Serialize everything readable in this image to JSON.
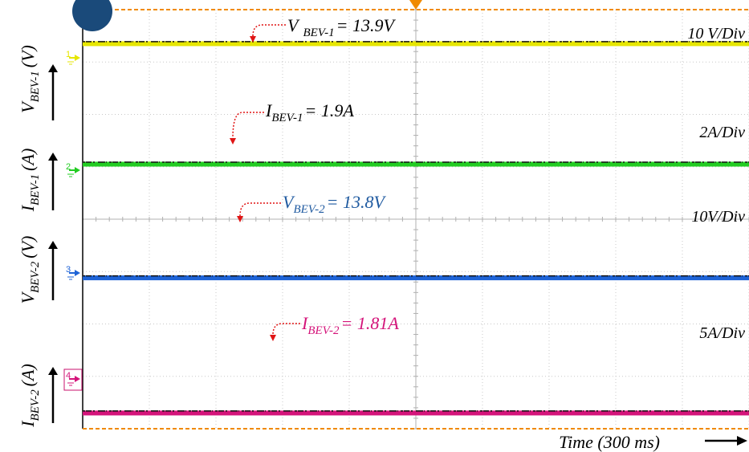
{
  "chart_data": {
    "type": "line",
    "time_label": "Time (300 ms)",
    "x_divisions": 10,
    "y_divisions": 8,
    "grid": true,
    "series": [
      {
        "name": "V_BEV-1",
        "channel": "1",
        "color": "#e6e600",
        "axis": {
          "main": "V",
          "sub": "BEV-1",
          "unit": "(V)"
        },
        "annotation": {
          "main": "V",
          "sub": "BEV-1",
          "value_text": "= 13.9V",
          "color": "#000000"
        },
        "scale": "10 V/Div",
        "value": 13.9,
        "unit": "V",
        "level_div": 7.35
      },
      {
        "name": "I_BEV-1",
        "channel": "2",
        "color": "#22cc22",
        "axis": {
          "main": "I",
          "sub": "BEV-1",
          "unit": "(A)"
        },
        "annotation": {
          "main": "I",
          "sub": "BEV-1",
          "value_text": "= 1.9A",
          "color": "#000000"
        },
        "scale": "2A/Div",
        "value": 1.9,
        "unit": "A",
        "level_div": 5.05
      },
      {
        "name": "V_BEV-2",
        "channel": "3",
        "color": "#1e63d6",
        "axis": {
          "main": "V",
          "sub": "BEV-2",
          "unit": "(V)"
        },
        "annotation": {
          "main": "V",
          "sub": "BEV-2",
          "value_text": "= 13.8V",
          "color": "#1f5aa0"
        },
        "scale": "10V/Div",
        "value": 13.8,
        "unit": "V",
        "level_div": 2.88
      },
      {
        "name": "I_BEV-2",
        "channel": "4",
        "color": "#d4147a",
        "axis": {
          "main": "I",
          "sub": "BEV-2",
          "unit": "(A)"
        },
        "annotation": {
          "main": "I",
          "sub": "BEV-2",
          "value_text": "= 1.81A",
          "color": "#d4147a"
        },
        "scale": "5A/Div",
        "value": 1.81,
        "unit": "A",
        "level_div": 0.3
      }
    ]
  }
}
